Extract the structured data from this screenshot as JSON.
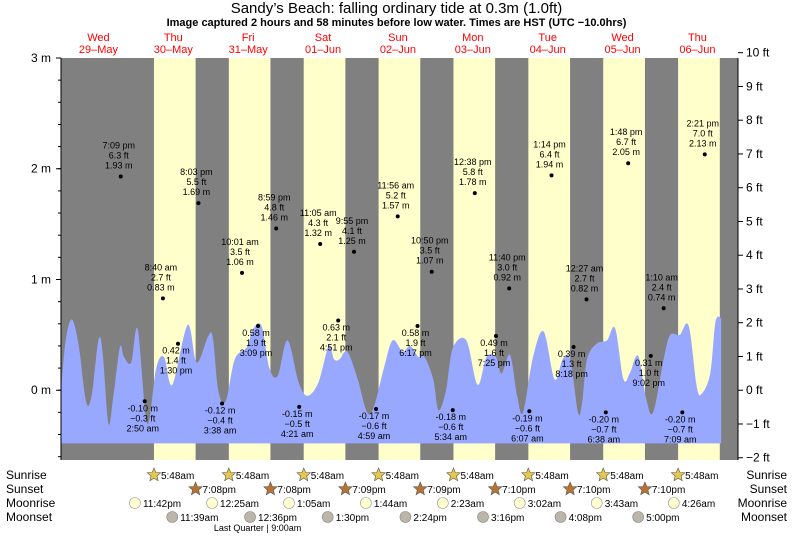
{
  "title": "Sandy’s Beach: falling  ordinary tide at 0.3m (1.0ft)",
  "subtitle": "Image captured 2 hours and 58 minutes before low water. Times are HST (UTC −10.0hrs)",
  "colors": {
    "night": "#808080",
    "day": "#ffffcc",
    "tide_fill": "#99a8ff",
    "day_header": "#ff0000",
    "sun_star": "#e8c84a",
    "sunset_star": "#b87333",
    "moonrise": "#ffffd0",
    "moonset": "#bbb5aa"
  },
  "day_headers": [
    {
      "dow": "Wed",
      "date": "29–May"
    },
    {
      "dow": "Thu",
      "date": "30–May"
    },
    {
      "dow": "Fri",
      "date": "31–May"
    },
    {
      "dow": "Sat",
      "date": "01–Jun"
    },
    {
      "dow": "Sun",
      "date": "02–Jun"
    },
    {
      "dow": "Mon",
      "date": "03–Jun"
    },
    {
      "dow": "Tue",
      "date": "04–Jun"
    },
    {
      "dow": "Wed",
      "date": "05–Jun"
    },
    {
      "dow": "Thu",
      "date": "06–Jun"
    }
  ],
  "row_labels": {
    "sunrise": "Sunrise",
    "sunset": "Sunset",
    "moonrise": "Moonrise",
    "moonset": "Moonset"
  },
  "moon_phase_note": "Last Quarter | 9:00am",
  "chart_data": {
    "type": "area",
    "x_unit": "hours HST from 2024-05-29 00:00",
    "ylabel_left_unit": "m",
    "ylabel_right_unit": "ft",
    "ylim_m": [
      -0.63,
      3.0
    ],
    "left_ticks": [
      "3 m",
      "2 m",
      "1 m",
      "0 m"
    ],
    "left_tick_values": [
      3,
      2,
      1,
      0
    ],
    "right_ticks": [
      "10 ft",
      "9 ft",
      "8 ft",
      "7 ft",
      "6 ft",
      "5 ft",
      "4 ft",
      "3 ft",
      "2 ft",
      "1 ft",
      "0 ft",
      "−1 ft",
      "−2 ft"
    ],
    "right_tick_values": [
      10,
      9,
      8,
      7,
      6,
      5,
      4,
      3,
      2,
      1,
      0,
      -1,
      -2
    ],
    "x_range_hours": [
      0,
      217
    ],
    "daylight": [
      {
        "start": 29.8,
        "end": 43.15
      },
      {
        "start": 53.8,
        "end": 67.13
      },
      {
        "start": 77.8,
        "end": 91.15
      },
      {
        "start": 101.8,
        "end": 115.15
      },
      {
        "start": 125.8,
        "end": 139.15
      },
      {
        "start": 149.8,
        "end": 163.17
      },
      {
        "start": 173.8,
        "end": 187.17
      },
      {
        "start": 197.8,
        "end": 211.17
      }
    ],
    "tide_points": [
      {
        "t": 19.15,
        "m": 1.93,
        "ft": "6.3 ft",
        "time": "7:09 pm",
        "type": "high"
      },
      {
        "t": 26.83,
        "m": -0.1,
        "ft": "−0.3 ft",
        "time": "2:50 am",
        "type": "low"
      },
      {
        "t": 32.67,
        "m": 0.83,
        "ft": "2.7 ft",
        "time": "8:40 am",
        "type": "high"
      },
      {
        "t": 37.5,
        "m": 0.42,
        "ft": "1.4 ft",
        "time": "1:30 pm",
        "type": "low"
      },
      {
        "t": 44.05,
        "m": 1.69,
        "ft": "5.5 ft",
        "time": "8:03 pm",
        "type": "high"
      },
      {
        "t": 51.63,
        "m": -0.12,
        "ft": "−0.4 ft",
        "time": "3:38 am",
        "type": "low"
      },
      {
        "t": 58.02,
        "m": 1.06,
        "ft": "3.5 ft",
        "time": "10:01 am",
        "type": "high"
      },
      {
        "t": 63.15,
        "m": 0.58,
        "ft": "1.9 ft",
        "time": "3:09 pm",
        "type": "low"
      },
      {
        "t": 68.98,
        "m": 1.46,
        "ft": "4.8 ft",
        "time": "8:59 pm",
        "type": "high"
      },
      {
        "t": 76.35,
        "m": -0.15,
        "ft": "−0.5 ft",
        "time": "4:21 am",
        "type": "low"
      },
      {
        "t": 83.08,
        "m": 1.32,
        "ft": "4.3 ft",
        "time": "11:05 am",
        "type": "high"
      },
      {
        "t": 88.85,
        "m": 0.63,
        "ft": "2.1 ft",
        "time": "4:51 pm",
        "type": "low"
      },
      {
        "t": 93.92,
        "m": 1.25,
        "ft": "4.1 ft",
        "time": "9:55 pm",
        "type": "high"
      },
      {
        "t": 100.98,
        "m": -0.17,
        "ft": "−0.6 ft",
        "time": "4:59 am",
        "type": "low"
      },
      {
        "t": 107.93,
        "m": 1.57,
        "ft": "5.2 ft",
        "time": "11:56 am",
        "type": "high"
      },
      {
        "t": 114.28,
        "m": 0.58,
        "ft": "1.9 ft",
        "time": "6:17 pm",
        "type": "low"
      },
      {
        "t": 118.83,
        "m": 1.07,
        "ft": "3.5 ft",
        "time": "10:50 pm",
        "type": "high"
      },
      {
        "t": 125.57,
        "m": -0.18,
        "ft": "−0.6 ft",
        "time": "5:34 am",
        "type": "low"
      },
      {
        "t": 132.63,
        "m": 1.78,
        "ft": "5.8 ft",
        "time": "12:38 pm",
        "type": "high"
      },
      {
        "t": 139.42,
        "m": 0.49,
        "ft": "1.6 ft",
        "time": "7:25 pm",
        "type": "low"
      },
      {
        "t": 143.67,
        "m": 0.92,
        "ft": "3.0 ft",
        "time": "11:40 pm",
        "type": "high"
      },
      {
        "t": 150.12,
        "m": -0.19,
        "ft": "−0.6 ft",
        "time": "6:07 am",
        "type": "low"
      },
      {
        "t": 157.23,
        "m": 1.94,
        "ft": "6.4 ft",
        "time": "1:14 pm",
        "type": "high"
      },
      {
        "t": 164.3,
        "m": 0.39,
        "ft": "1.3 ft",
        "time": "8:18 pm",
        "type": "low"
      },
      {
        "t": 168.45,
        "m": 0.82,
        "ft": "2.7 ft",
        "time": "12:27 am",
        "type": "high"
      },
      {
        "t": 174.63,
        "m": -0.2,
        "ft": "−0.7 ft",
        "time": "6:38 am",
        "type": "low"
      },
      {
        "t": 181.8,
        "m": 2.05,
        "ft": "6.7 ft",
        "time": "1:48 pm",
        "type": "high"
      },
      {
        "t": 189.03,
        "m": 0.31,
        "ft": "1.0 ft",
        "time": "9:02 pm",
        "type": "low"
      },
      {
        "t": 193.17,
        "m": 0.74,
        "ft": "2.4 ft",
        "time": "1:10 am",
        "type": "high"
      },
      {
        "t": 199.15,
        "m": -0.2,
        "ft": "−0.7 ft",
        "time": "7:09 am",
        "type": "low"
      },
      {
        "t": 206.35,
        "m": 2.13,
        "ft": "7.0 ft",
        "time": "2:21 pm",
        "type": "high"
      }
    ],
    "curve": [
      {
        "t": 0,
        "m": 0.0
      },
      {
        "t": 1.5,
        "m": 0.45
      },
      {
        "t": 3.5,
        "m": 0.64
      },
      {
        "t": 5.7,
        "m": 0.4
      },
      {
        "t": 8.0,
        "m": -0.1
      },
      {
        "t": 9.8,
        "m": -0.05
      },
      {
        "t": 12.0,
        "m": 0.45
      },
      {
        "t": 13.3,
        "m": 0.35
      },
      {
        "t": 15.2,
        "m": -0.3
      },
      {
        "t": 16.8,
        "m": -0.05
      },
      {
        "t": 18.9,
        "m": 0.39
      },
      {
        "t": 20.2,
        "m": 0.3
      },
      {
        "t": 22.5,
        "m": 0.25
      },
      {
        "t": 24.6,
        "m": 0.55
      },
      {
        "t": 27.6,
        "m": -0.3
      },
      {
        "t": 30.5,
        "m": 0.2
      },
      {
        "t": 33.0,
        "m": 0.3
      },
      {
        "t": 35.7,
        "m": 0.05
      },
      {
        "t": 40.6,
        "m": 0.59
      },
      {
        "t": 43.5,
        "m": 0.25
      },
      {
        "t": 47.2,
        "m": 0.49
      },
      {
        "t": 48.7,
        "m": 0.47
      },
      {
        "t": 50.4,
        "m": 0.0
      },
      {
        "t": 52.8,
        "m": -0.1
      },
      {
        "t": 55.7,
        "m": 0.28
      },
      {
        "t": 59.6,
        "m": 0.39
      },
      {
        "t": 61.5,
        "m": 0.55
      },
      {
        "t": 64.3,
        "m": 0.58
      },
      {
        "t": 66.8,
        "m": 0.2
      },
      {
        "t": 69.5,
        "m": 0.13
      },
      {
        "t": 72.6,
        "m": 0.45
      },
      {
        "t": 76.2,
        "m": 0.07
      },
      {
        "t": 79.0,
        "m": -0.05
      },
      {
        "t": 82.5,
        "m": 0.07
      },
      {
        "t": 85.8,
        "m": 0.4
      },
      {
        "t": 87.5,
        "m": 0.28
      },
      {
        "t": 89.3,
        "m": 0.28
      },
      {
        "t": 91.0,
        "m": 0.35
      },
      {
        "t": 92.4,
        "m": 0.32
      },
      {
        "t": 95.1,
        "m": 0.1
      },
      {
        "t": 98.1,
        "m": -0.2
      },
      {
        "t": 100.3,
        "m": -0.15
      },
      {
        "t": 103.5,
        "m": 0.2
      },
      {
        "t": 106.3,
        "m": 0.45
      },
      {
        "t": 109.5,
        "m": 0.35
      },
      {
        "t": 111.9,
        "m": 0.4
      },
      {
        "t": 114.6,
        "m": 0.3
      },
      {
        "t": 116.5,
        "m": 0.3
      },
      {
        "t": 119.3,
        "m": 0.1
      },
      {
        "t": 121.0,
        "m": -0.18
      },
      {
        "t": 123.4,
        "m": 0.0
      },
      {
        "t": 125.6,
        "m": 0.38
      },
      {
        "t": 129.9,
        "m": 0.45
      },
      {
        "t": 133.5,
        "m": 0.05
      },
      {
        "t": 136.4,
        "m": 0.3
      },
      {
        "t": 139.4,
        "m": 0.3
      },
      {
        "t": 141.2,
        "m": 0.15
      },
      {
        "t": 143.9,
        "m": 0.32
      },
      {
        "t": 146.2,
        "m": -0.05
      },
      {
        "t": 148.1,
        "m": -0.2
      },
      {
        "t": 151.3,
        "m": 0.3
      },
      {
        "t": 154.7,
        "m": 0.53
      },
      {
        "t": 158.2,
        "m": 0.1
      },
      {
        "t": 160.8,
        "m": 0.28
      },
      {
        "t": 163.2,
        "m": 0.28
      },
      {
        "t": 165.7,
        "m": -0.2
      },
      {
        "t": 167.0,
        "m": -0.12
      },
      {
        "t": 168.6,
        "m": 0.28
      },
      {
        "t": 171.7,
        "m": 0.42
      },
      {
        "t": 175.0,
        "m": 0.45
      },
      {
        "t": 177.6,
        "m": 0.56
      },
      {
        "t": 180.3,
        "m": 0.1
      },
      {
        "t": 182.4,
        "m": 0.16
      },
      {
        "t": 185.0,
        "m": 0.31
      },
      {
        "t": 187.5,
        "m": -0.07
      },
      {
        "t": 189.8,
        "m": -0.2
      },
      {
        "t": 193.3,
        "m": 0.3
      },
      {
        "t": 195.3,
        "m": 0.5
      },
      {
        "t": 198.3,
        "m": 0.5
      },
      {
        "t": 201.2,
        "m": 0.58
      },
      {
        "t": 203.8,
        "m": 0.03
      },
      {
        "t": 205.4,
        "m": -0.03
      },
      {
        "t": 208.1,
        "m": 0.15
      },
      {
        "t": 209.8,
        "m": 0.62
      },
      {
        "t": 211.6,
        "m": 0.65
      }
    ],
    "sun_moon": [
      {
        "sunrise": "5:48am",
        "sunrise_t": 29.8,
        "sunset": "7:08pm",
        "sunset_t": 43.13,
        "moonrise": "11:42pm",
        "moonrise_t": 23.7,
        "moonset": "11:39am",
        "moonset_t": 35.65
      },
      {
        "sunrise": "5:48am",
        "sunrise_t": 53.8,
        "sunset": "7:08pm",
        "sunset_t": 67.13,
        "moonrise": "12:25am",
        "moonrise_t": 48.42,
        "moonset": "12:36pm",
        "moonset_t": 60.6
      },
      {
        "sunrise": "5:48am",
        "sunrise_t": 77.8,
        "sunset": "7:09pm",
        "sunset_t": 91.15,
        "moonrise": "1:05am",
        "moonrise_t": 73.08,
        "moonset": "1:30pm",
        "moonset_t": 85.5
      },
      {
        "sunrise": "5:48am",
        "sunrise_t": 101.8,
        "sunset": "7:09pm",
        "sunset_t": 115.15,
        "moonrise": "1:44am",
        "moonrise_t": 97.73,
        "moonset": "2:24pm",
        "moonset_t": 110.4
      },
      {
        "sunrise": "5:48am",
        "sunrise_t": 125.8,
        "sunset": "7:10pm",
        "sunset_t": 139.17,
        "moonrise": "2:23am",
        "moonrise_t": 122.38,
        "moonset": "3:16pm",
        "moonset_t": 135.27
      },
      {
        "sunrise": "5:48am",
        "sunrise_t": 149.8,
        "sunset": "7:10pm",
        "sunset_t": 163.17,
        "moonrise": "3:02am",
        "moonrise_t": 147.03,
        "moonset": "4:08pm",
        "moonset_t": 160.13
      },
      {
        "sunrise": "5:48am",
        "sunrise_t": 173.8,
        "sunset": "7:10pm",
        "sunset_t": 187.17,
        "moonrise": "3:43am",
        "moonrise_t": 171.72,
        "moonset": "5:00pm",
        "moonset_t": 185.0
      },
      {
        "sunrise": "5:48am",
        "sunrise_t": 197.8,
        "moonrise": "4:26am",
        "moonrise_t": 196.43
      }
    ]
  }
}
